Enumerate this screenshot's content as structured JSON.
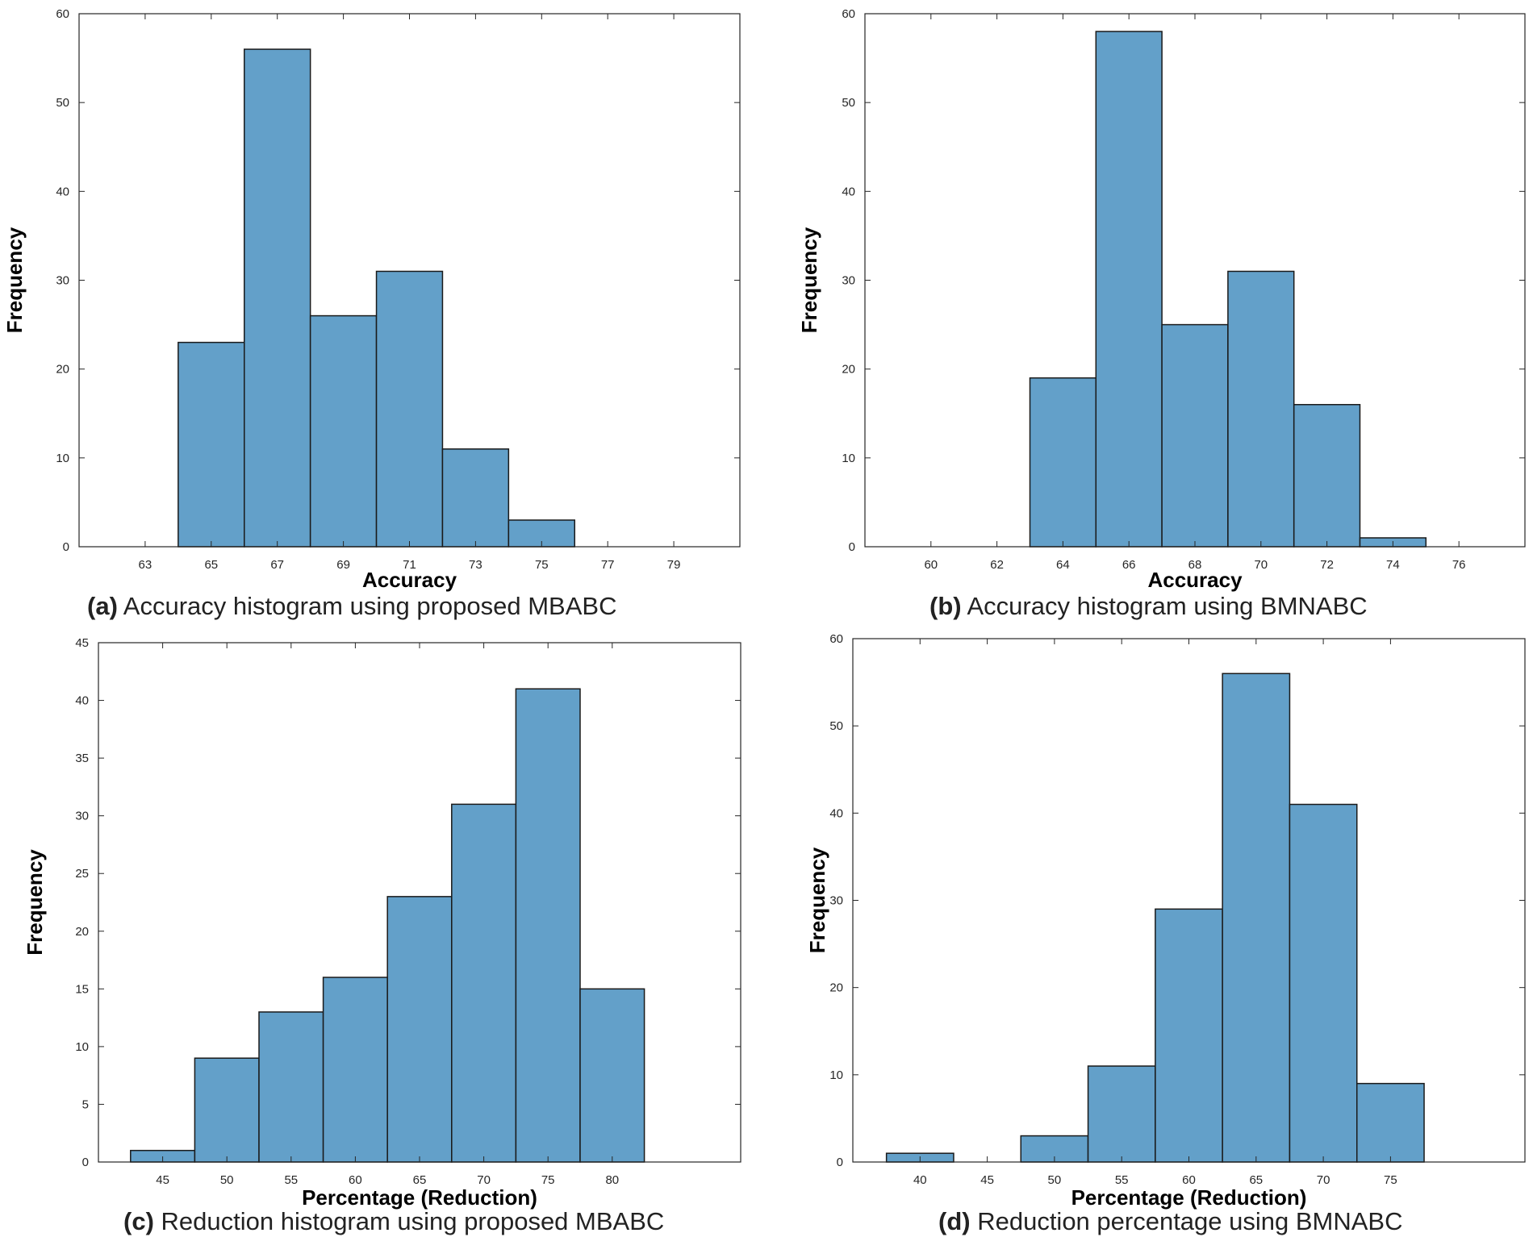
{
  "chart_data": [
    {
      "type": "bar",
      "panel": "a",
      "caption_label": "(a)",
      "caption_text": "Accuracy histogram using proposed MBABC",
      "xlabel": "Accuracy",
      "ylabel": "Frequency",
      "xlim": [
        61,
        81
      ],
      "ylim": [
        0,
        60
      ],
      "xticks": [
        63,
        65,
        67,
        69,
        71,
        73,
        75,
        77,
        79
      ],
      "yticks": [
        0,
        10,
        20,
        30,
        40,
        50,
        60
      ],
      "bins": [
        [
          64,
          66
        ],
        [
          66,
          68
        ],
        [
          68,
          70
        ],
        [
          70,
          72
        ],
        [
          72,
          74
        ],
        [
          74,
          76
        ]
      ],
      "values": [
        23,
        56,
        26,
        31,
        11,
        3
      ],
      "bar_color": "#63A0C9"
    },
    {
      "type": "bar",
      "panel": "b",
      "caption_label": "(b)",
      "caption_text": "Accuracy histogram using BMNABC",
      "xlabel": "Accuracy",
      "ylabel": "Frequency",
      "xlim": [
        58,
        78
      ],
      "ylim": [
        0,
        60
      ],
      "xticks": [
        60,
        62,
        64,
        66,
        68,
        70,
        72,
        74,
        76
      ],
      "yticks": [
        0,
        10,
        20,
        30,
        40,
        50,
        60
      ],
      "bins": [
        [
          63,
          65
        ],
        [
          65,
          67
        ],
        [
          67,
          69
        ],
        [
          69,
          71
        ],
        [
          71,
          73
        ],
        [
          73,
          75
        ]
      ],
      "values": [
        19,
        58,
        25,
        31,
        16,
        1
      ],
      "bar_color": "#63A0C9"
    },
    {
      "type": "bar",
      "panel": "c",
      "caption_label": "(c)",
      "caption_text": "Reduction histogram using proposed MBABC",
      "xlabel": "Percentage (Reduction)",
      "ylabel": "Frequency",
      "xlim": [
        40,
        90
      ],
      "ylim": [
        0,
        45
      ],
      "xticks": [
        45,
        50,
        55,
        60,
        65,
        70,
        75,
        80
      ],
      "yticks": [
        0,
        5,
        10,
        15,
        20,
        25,
        30,
        35,
        40,
        45
      ],
      "bins": [
        [
          42.5,
          47.5
        ],
        [
          47.5,
          52.5
        ],
        [
          52.5,
          57.5
        ],
        [
          57.5,
          62.5
        ],
        [
          62.5,
          67.5
        ],
        [
          67.5,
          72.5
        ],
        [
          72.5,
          77.5
        ],
        [
          77.5,
          82.5
        ]
      ],
      "values": [
        1,
        9,
        13,
        16,
        23,
        31,
        41,
        15
      ],
      "bar_color": "#63A0C9"
    },
    {
      "type": "bar",
      "panel": "d",
      "caption_label": "(d)",
      "caption_text": "Reduction percentage using BMNABC",
      "xlabel": "Percentage (Reduction)",
      "ylabel": "Frequency",
      "xlim": [
        35,
        85
      ],
      "ylim": [
        0,
        60
      ],
      "xticks": [
        40,
        45,
        50,
        55,
        60,
        65,
        70,
        75
      ],
      "yticks": [
        0,
        10,
        20,
        30,
        40,
        50,
        60
      ],
      "bins": [
        [
          37.5,
          42.5
        ],
        [
          47.5,
          52.5
        ],
        [
          52.5,
          57.5
        ],
        [
          57.5,
          62.5
        ],
        [
          62.5,
          67.5
        ],
        [
          67.5,
          72.5
        ],
        [
          72.5,
          77.5
        ]
      ],
      "values": [
        1,
        3,
        11,
        29,
        56,
        41,
        9
      ],
      "bar_color": "#63A0C9"
    }
  ]
}
